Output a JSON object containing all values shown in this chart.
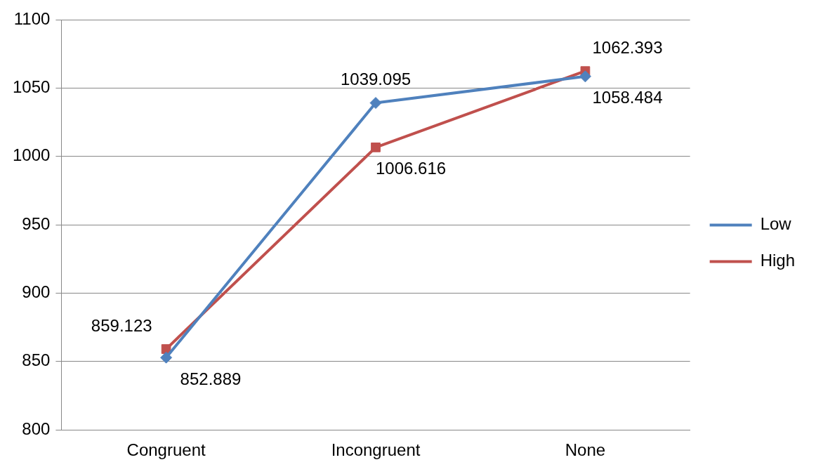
{
  "chart_data": {
    "type": "line",
    "categories": [
      "Congruent",
      "Incongruent",
      "None"
    ],
    "series": [
      {
        "name": "Low",
        "color": "#4f81bd",
        "marker": "diamond",
        "values": [
          852.889,
          1039.095,
          1058.484
        ]
      },
      {
        "name": "High",
        "color": "#c0504d",
        "marker": "square",
        "values": [
          859.123,
          1006.616,
          1062.393
        ]
      }
    ],
    "ylim": [
      800,
      1100
    ],
    "yticks": [
      800,
      850,
      900,
      950,
      1000,
      1050,
      1100
    ],
    "grid": "y",
    "legend": "right",
    "data_labels": true,
    "line_style": "solid"
  }
}
